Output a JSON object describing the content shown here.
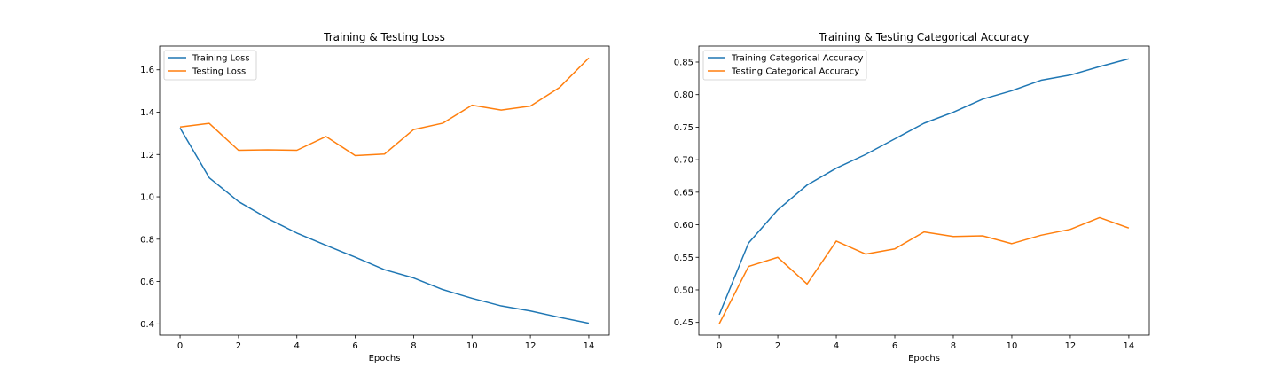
{
  "chart_data": [
    {
      "type": "line",
      "title": "Training & Testing Loss",
      "xlabel": "Epochs",
      "ylabel": "",
      "x": [
        0,
        1,
        2,
        3,
        4,
        5,
        6,
        7,
        8,
        9,
        10,
        11,
        12,
        13,
        14
      ],
      "xticks": [
        0,
        2,
        4,
        6,
        8,
        10,
        12,
        14
      ],
      "xlim": [
        -0.7,
        14.7
      ],
      "yticks": [
        0.4,
        0.6,
        0.8,
        1.0,
        1.2,
        1.4,
        1.6
      ],
      "ytick_labels": [
        "0.4",
        "0.6",
        "0.8",
        "1.0",
        "1.2",
        "1.4",
        "1.6"
      ],
      "ylim": [
        0.347,
        1.712
      ],
      "legend_position": "top-left",
      "grid": false,
      "series": [
        {
          "name": "Training Loss",
          "color": "#1f77b4",
          "values": [
            1.325,
            1.09,
            0.978,
            0.898,
            0.829,
            0.771,
            0.715,
            0.656,
            0.617,
            0.562,
            0.521,
            0.485,
            0.461,
            0.431,
            0.403
          ]
        },
        {
          "name": "Testing Loss",
          "color": "#ff7f0e",
          "values": [
            1.33,
            1.347,
            1.22,
            1.222,
            1.22,
            1.285,
            1.195,
            1.202,
            1.318,
            1.348,
            1.433,
            1.41,
            1.429,
            1.517,
            1.656
          ]
        }
      ]
    },
    {
      "type": "line",
      "title": "Training & Testing Categorical Accuracy",
      "xlabel": "Epochs",
      "ylabel": "",
      "x": [
        0,
        1,
        2,
        3,
        4,
        5,
        6,
        7,
        8,
        9,
        10,
        11,
        12,
        13,
        14
      ],
      "xticks": [
        0,
        2,
        4,
        6,
        8,
        10,
        12,
        14
      ],
      "xlim": [
        -0.7,
        14.7
      ],
      "yticks": [
        0.45,
        0.5,
        0.55,
        0.6,
        0.65,
        0.7,
        0.75,
        0.8,
        0.85
      ],
      "ytick_labels": [
        "0.45",
        "0.50",
        "0.55",
        "0.60",
        "0.65",
        "0.70",
        "0.75",
        "0.80",
        "0.85"
      ],
      "ylim": [
        0.4305,
        0.8745
      ],
      "legend_position": "top-left",
      "grid": false,
      "series": [
        {
          "name": "Training Categorical Accuracy",
          "color": "#1f77b4",
          "values": [
            0.462,
            0.572,
            0.623,
            0.661,
            0.687,
            0.708,
            0.732,
            0.756,
            0.773,
            0.793,
            0.806,
            0.822,
            0.83,
            0.843,
            0.855
          ]
        },
        {
          "name": "Testing Categorical Accuracy",
          "color": "#ff7f0e",
          "values": [
            0.448,
            0.536,
            0.55,
            0.509,
            0.575,
            0.555,
            0.563,
            0.589,
            0.582,
            0.583,
            0.571,
            0.584,
            0.593,
            0.611,
            0.595
          ]
        }
      ]
    }
  ]
}
